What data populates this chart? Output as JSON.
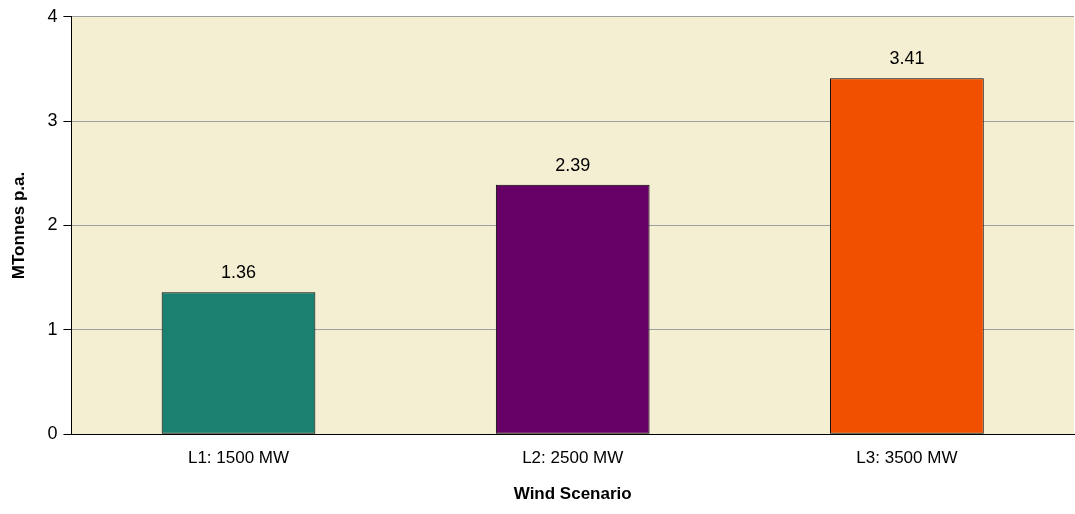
{
  "chart_data": {
    "type": "bar",
    "xlabel": "Wind Scenario",
    "ylabel": "MTonnes p.a.",
    "categories": [
      "L1: 1500 MW",
      "L2: 2500 MW",
      "L3: 3500 MW"
    ],
    "values": [
      1.36,
      2.39,
      3.41
    ],
    "colors": [
      "#1a8070",
      "#660066",
      "#f05000"
    ],
    "ylim": [
      0,
      4
    ],
    "yticks": [
      0,
      1,
      2,
      3,
      4
    ],
    "grid": "y",
    "data_labels": true
  }
}
